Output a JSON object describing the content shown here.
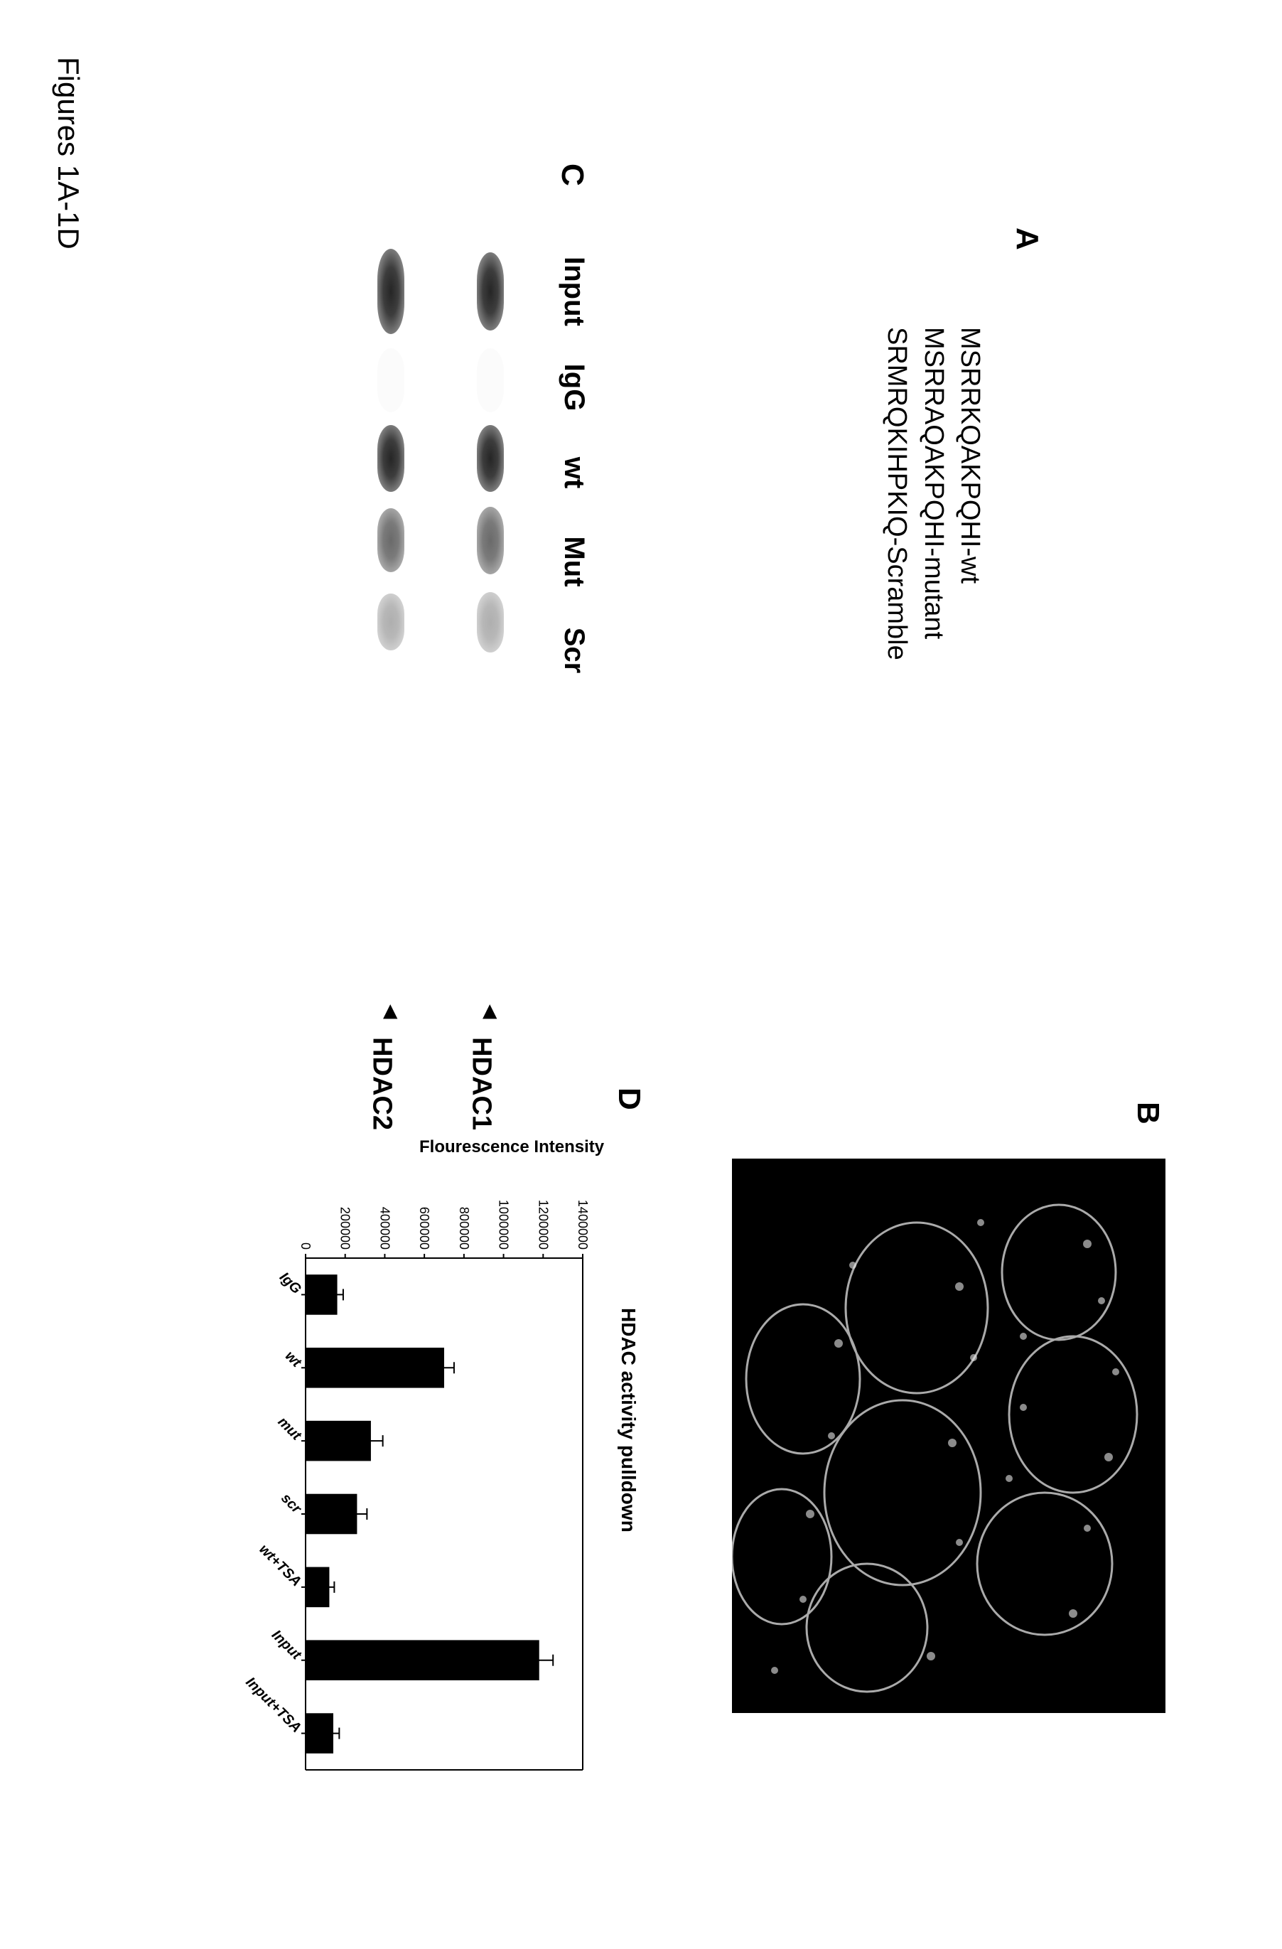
{
  "page": {
    "title": "Figures 1A-1D"
  },
  "panelA": {
    "label": "A",
    "sequences": [
      "MSRRKQAKPQHI-wt",
      "MSRRAQAKPQHI-mutant",
      "SRMRQKIHPKIQ-Scramble"
    ]
  },
  "panelB": {
    "label": "B"
  },
  "panelC": {
    "label": "C",
    "lanes": [
      "Input",
      "IgG",
      "wt",
      "Mut",
      "Scr"
    ],
    "rows": [
      {
        "name": "HDAC1",
        "bands": [
          {
            "w": 110,
            "cls": "strong"
          },
          {
            "w": 90,
            "cls": "none"
          },
          {
            "w": 100,
            "cls": "strong"
          },
          {
            "w": 95,
            "cls": "med"
          },
          {
            "w": 85,
            "cls": "faint"
          }
        ]
      },
      {
        "name": "HDAC2",
        "bands": [
          {
            "w": 120,
            "cls": "strong"
          },
          {
            "w": 90,
            "cls": "none"
          },
          {
            "w": 105,
            "cls": "strong"
          },
          {
            "w": 90,
            "cls": "med"
          },
          {
            "w": 80,
            "cls": "faint"
          }
        ]
      }
    ],
    "lane_widths": [
      140,
      110,
      110,
      120,
      110
    ]
  },
  "panelD": {
    "label": "D",
    "title": "HDAC activity pulldown",
    "y_axis_title": "Flourescence Intensity",
    "ylim": [
      0,
      1400000
    ],
    "ytick_step": 200000,
    "yticks": [
      0,
      200000,
      400000,
      600000,
      800000,
      1000000,
      1200000,
      1400000
    ],
    "categories": [
      "IgG",
      "wt",
      "mut",
      "scr",
      "wt+TSA",
      "Input",
      "Input+TSA"
    ],
    "values": [
      160000,
      700000,
      330000,
      260000,
      120000,
      1180000,
      140000
    ],
    "errors": [
      30000,
      50000,
      60000,
      50000,
      25000,
      70000,
      30000
    ],
    "bar_color": "#000000",
    "bar_width": 0.55,
    "axis_color": "#000000",
    "background_color": "#ffffff",
    "tick_fontsize": 18,
    "label_rotation": -45
  }
}
